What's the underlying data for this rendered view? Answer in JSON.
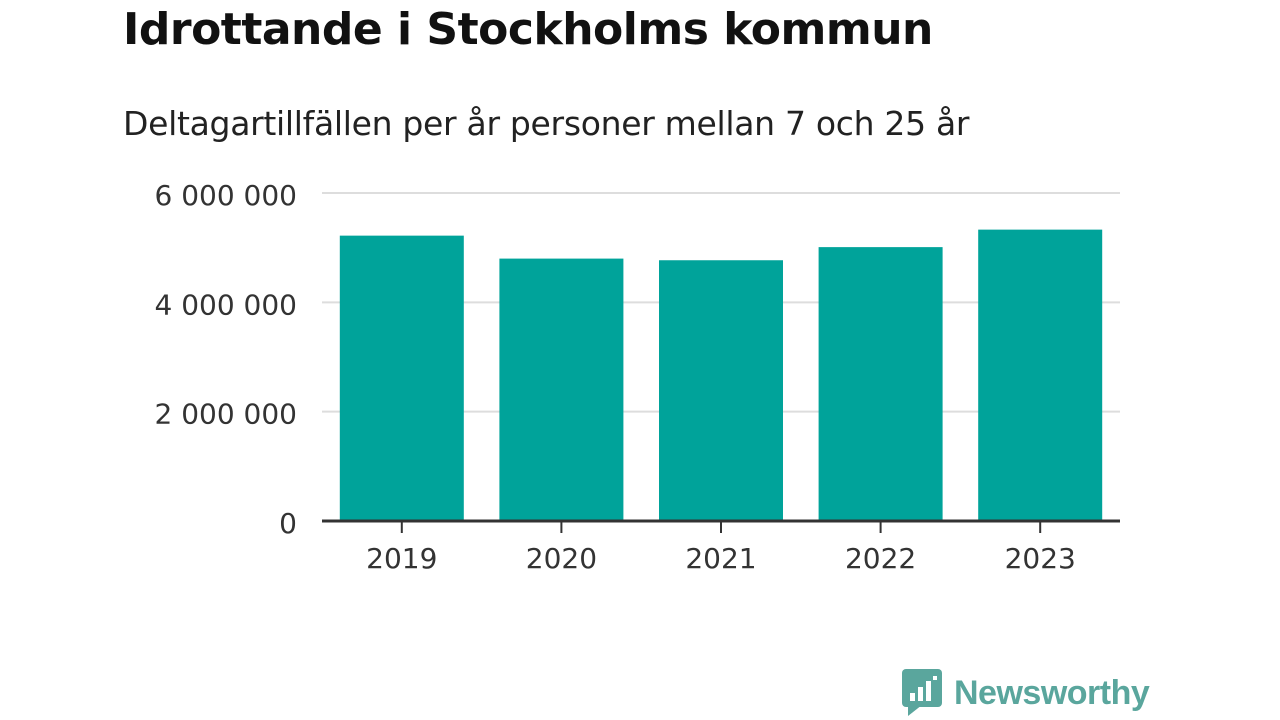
{
  "header": {
    "title": "Idrottande i Stockholms kommun",
    "subtitle": "Deltagartillfällen per år personer mellan 7 och 25 år"
  },
  "chart_data": {
    "type": "bar",
    "title": "Idrottande i Stockholms kommun",
    "subtitle": "Deltagartillfällen per år personer mellan 7 och 25 år",
    "categories": [
      "2019",
      "2020",
      "2021",
      "2022",
      "2023"
    ],
    "values": [
      5220000,
      4800000,
      4770000,
      5010000,
      5330000
    ],
    "ylim": [
      0,
      6000000
    ],
    "yticks": [
      0,
      2000000,
      4000000,
      6000000
    ],
    "ytick_labels": [
      "0",
      "2 000 000",
      "4 000 000",
      "6 000 000"
    ],
    "xlabel": "",
    "ylabel": "",
    "grid": true,
    "legend": "none",
    "bar_color": "#00a39a",
    "grid_color": "#dddddd",
    "axis_color": "#333333"
  },
  "branding": {
    "name": "Newsworthy",
    "icon": "newsworthy-logo-icon",
    "color": "#5aa69d"
  }
}
